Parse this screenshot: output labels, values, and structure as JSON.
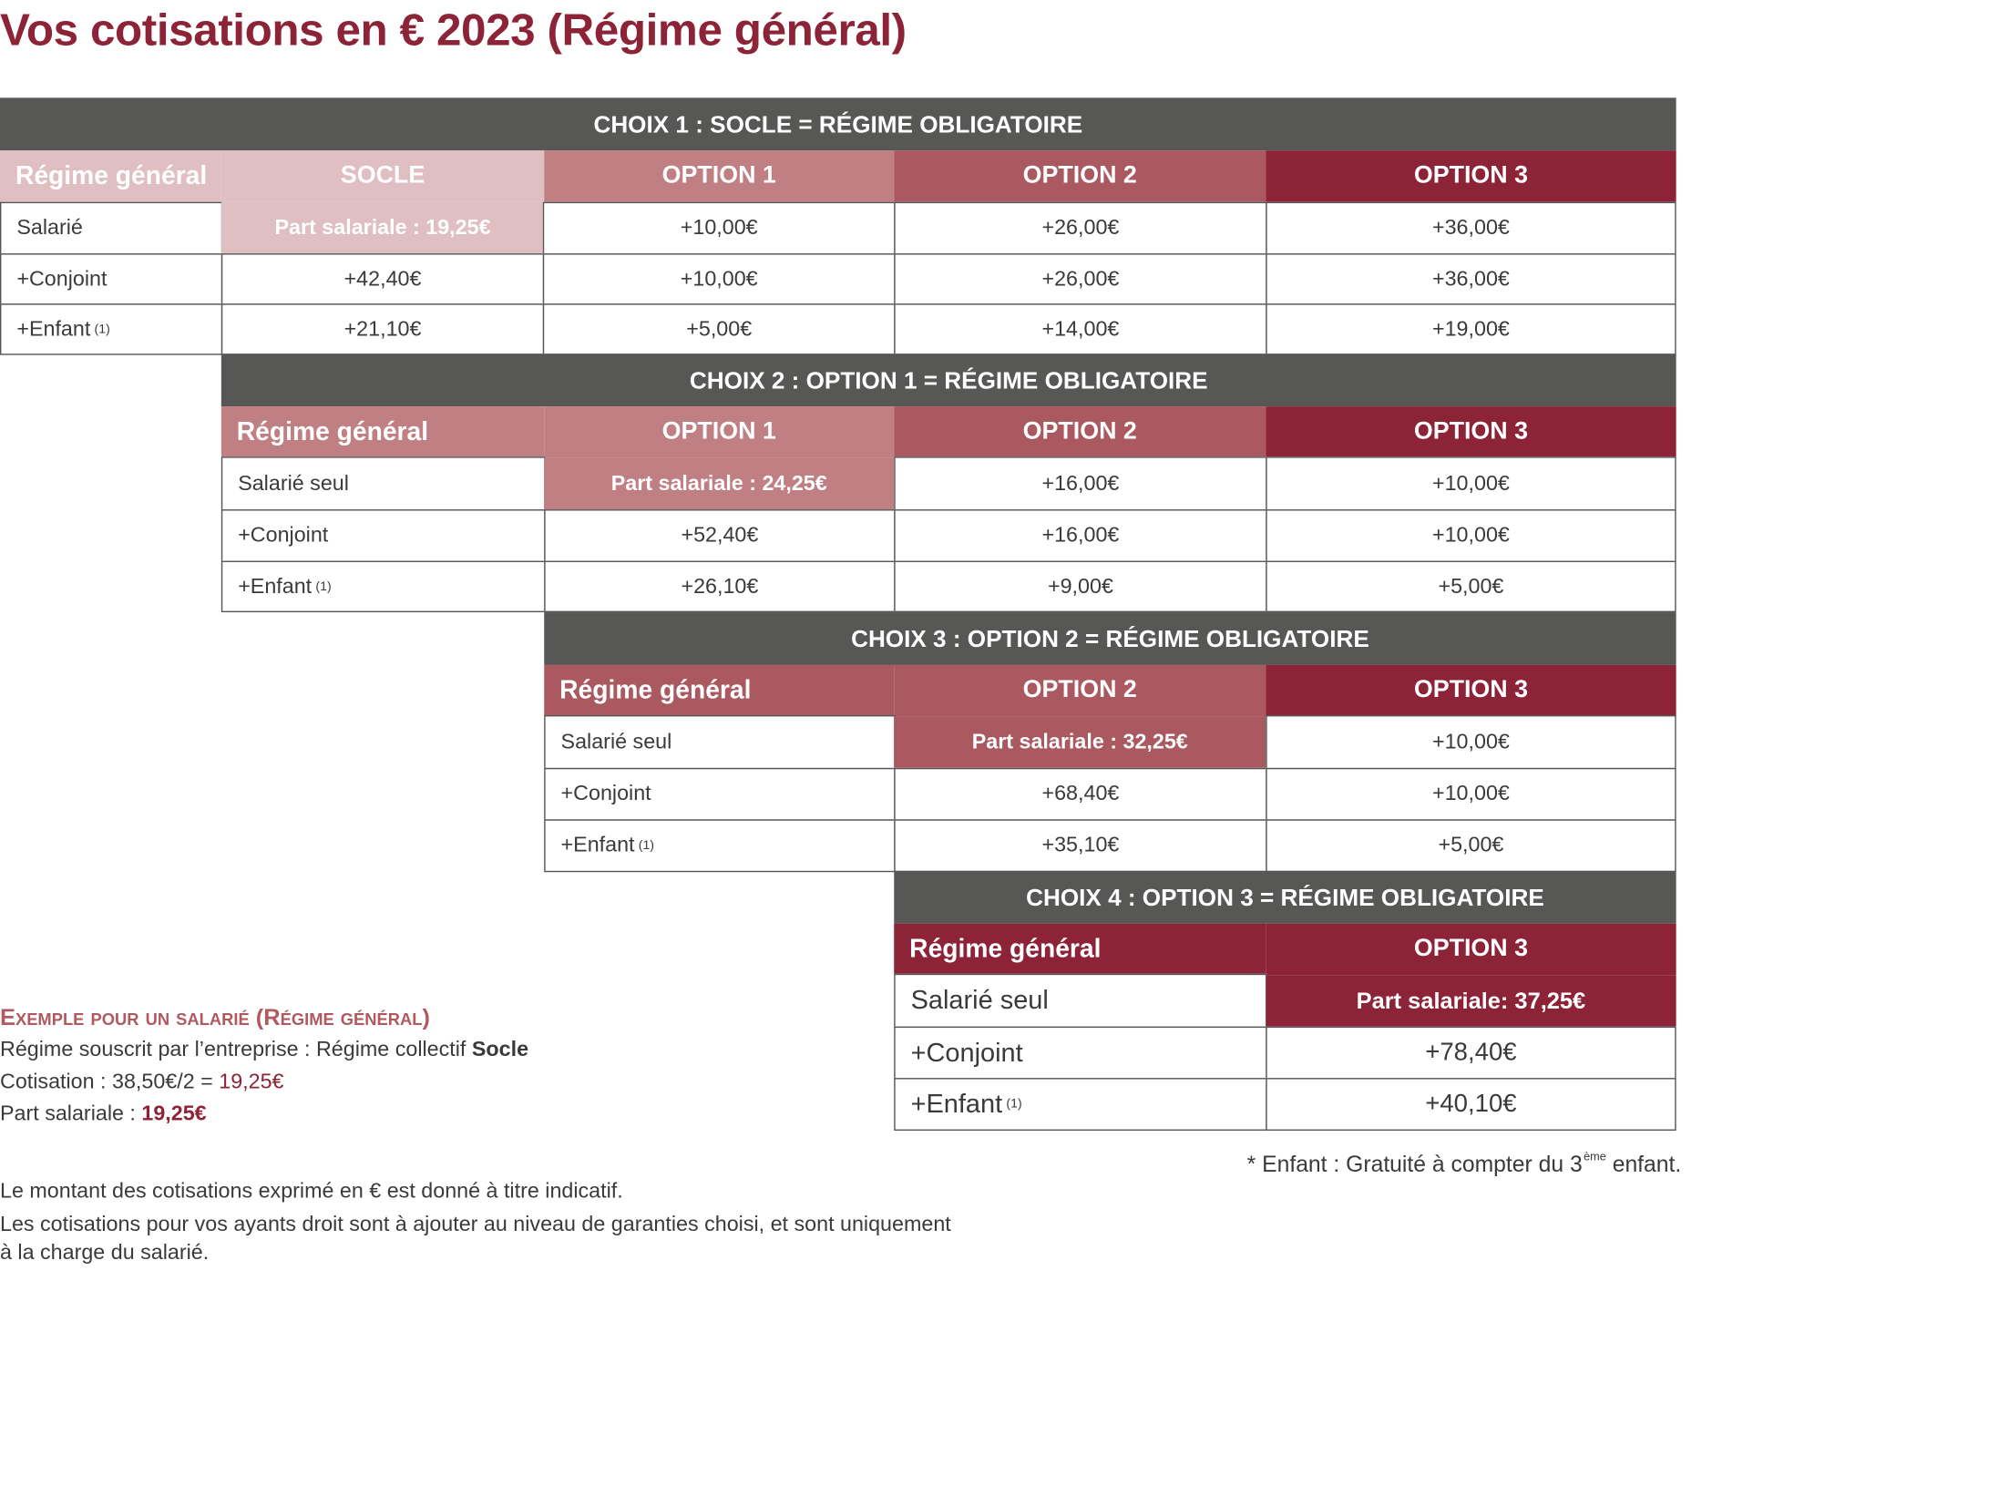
{
  "title": "Vos cotisations en € 2023 (Régime général)",
  "colors": {
    "band": "#575756",
    "socle": "#e0bfc2",
    "option1": "#c07f82",
    "option2": "#a9595f",
    "option3": "#8c2336",
    "accent": "#8c2336"
  },
  "choix1": {
    "band": "CHOIX 1 : SOCLE = RÉGIME OBLIGATOIRE",
    "headers": [
      "Régime général",
      "SOCLE",
      "OPTION 1",
      "OPTION 2",
      "OPTION 3"
    ],
    "rows": [
      {
        "label": "Salarié",
        "cells": [
          "Part salariale : 19,25€",
          "+10,00€",
          "+26,00€",
          "+36,00€"
        ]
      },
      {
        "label": "+Conjoint",
        "cells": [
          "+42,40€",
          "+10,00€",
          "+26,00€",
          "+36,00€"
        ]
      },
      {
        "label": "+Enfant",
        "note": "(1)",
        "cells": [
          "+21,10€",
          "+5,00€",
          "+14,00€",
          "+19,00€"
        ]
      }
    ]
  },
  "choix2": {
    "band": "CHOIX 2 : OPTION 1 = RÉGIME OBLIGATOIRE",
    "headers": [
      "Régime général",
      "OPTION 1",
      "OPTION 2",
      "OPTION 3"
    ],
    "rows": [
      {
        "label": "Salarié seul",
        "cells": [
          "Part salariale : 24,25€",
          "+16,00€",
          "+10,00€"
        ]
      },
      {
        "label": "+Conjoint",
        "cells": [
          "+52,40€",
          "+16,00€",
          "+10,00€"
        ]
      },
      {
        "label": "+Enfant",
        "note": "(1)",
        "cells": [
          "+26,10€",
          "+9,00€",
          "+5,00€"
        ]
      }
    ]
  },
  "choix3": {
    "band": "CHOIX 3 : OPTION 2 = RÉGIME OBLIGATOIRE",
    "headers": [
      "Régime général",
      "OPTION 2",
      "OPTION 3"
    ],
    "rows": [
      {
        "label": "Salarié seul",
        "cells": [
          "Part salariale : 32,25€",
          "+10,00€"
        ]
      },
      {
        "label": "+Conjoint",
        "cells": [
          "+68,40€",
          "+10,00€"
        ]
      },
      {
        "label": "+Enfant",
        "note": "(1)",
        "cells": [
          "+35,10€",
          "+5,00€"
        ]
      }
    ]
  },
  "choix4": {
    "band": "CHOIX 4 : OPTION 3 = RÉGIME OBLIGATOIRE",
    "headers": [
      "Régime général",
      "OPTION 3"
    ],
    "rows": [
      {
        "label": "Salarié seul",
        "cells": [
          "Part salariale: 37,25€"
        ]
      },
      {
        "label": "+Conjoint",
        "cells": [
          "+78,40€"
        ]
      },
      {
        "label": "+Enfant",
        "note": "(1)",
        "cells": [
          "+40,10€"
        ]
      }
    ]
  },
  "example": {
    "title": "Exemple pour un salarié (Régime général)",
    "line1_prefix": "Régime souscrit par l’entreprise : Régime collectif ",
    "line1_bold": "Socle",
    "line2_prefix": "Cotisation :  38,50€/2 = ",
    "line2_value": "19,25€",
    "line3_prefix": "Part salariale : ",
    "line3_value": "19,25€"
  },
  "child_note": {
    "prefix": "* Enfant : Gratuité à compter du 3",
    "sup": "ème",
    "suffix": " enfant."
  },
  "disclaimer": {
    "line1": "Le montant des cotisations exprimé en € est donné à titre indicatif.",
    "line2": "Les cotisations pour vos ayants droit sont à ajouter au niveau de garanties choisi, et sont uniquement",
    "line3": "à la charge du salarié."
  }
}
